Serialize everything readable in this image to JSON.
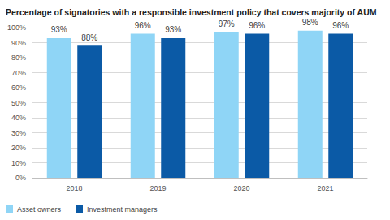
{
  "chart_data": {
    "type": "bar",
    "title": "Percentage of signatories with a responsible investment policy that covers majority of AUM",
    "categories": [
      "2018",
      "2019",
      "2020",
      "2021"
    ],
    "series": [
      {
        "name": "Asset owners",
        "color": "#8fd5f6",
        "values": [
          93,
          96,
          97,
          98
        ],
        "value_labels": [
          "93%",
          "96%",
          "97%",
          "98%"
        ]
      },
      {
        "name": "Investment managers",
        "color": "#0b5aa6",
        "values": [
          88,
          93,
          96,
          96
        ],
        "value_labels": [
          "88%",
          "93%",
          "96%",
          "96%"
        ]
      }
    ],
    "ylim": [
      0,
      100
    ],
    "yticks": [
      {
        "value": 0,
        "label": "0%"
      },
      {
        "value": 10,
        "label": "10%"
      },
      {
        "value": 20,
        "label": "20%"
      },
      {
        "value": 30,
        "label": "30%"
      },
      {
        "value": 40,
        "label": "40%"
      },
      {
        "value": 50,
        "label": "50%"
      },
      {
        "value": 60,
        "label": "60%"
      },
      {
        "value": 70,
        "label": "70%"
      },
      {
        "value": 80,
        "label": "80%"
      },
      {
        "value": 90,
        "label": "90%"
      },
      {
        "value": 100,
        "label": "100%"
      }
    ],
    "grid": true,
    "data_labels": true,
    "legend": "bottom-left"
  }
}
